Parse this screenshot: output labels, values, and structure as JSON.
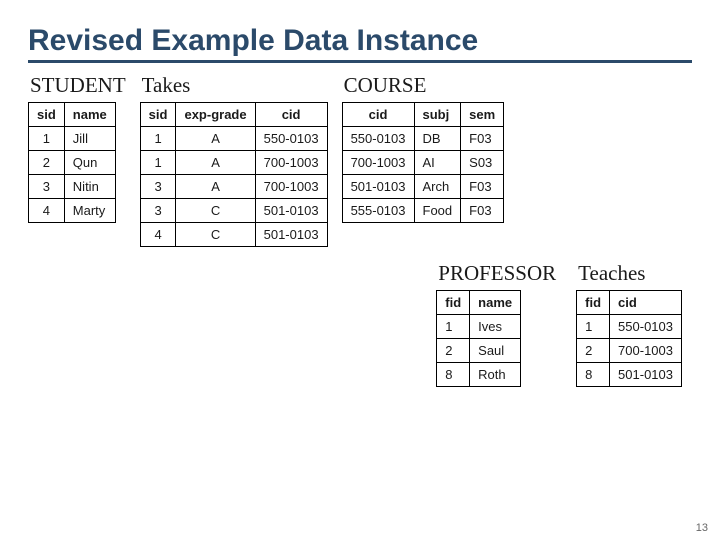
{
  "title": "Revised Example Data Instance",
  "page_number": "13",
  "colors": {
    "title": "#2b4a6a",
    "rule": "#2b4a6a",
    "border": "#000000",
    "background": "#ffffff"
  },
  "typography": {
    "title_fontsize": 30,
    "table_title_fontsize": 21,
    "cell_fontsize": 13
  },
  "tables": {
    "student": {
      "title": "STUDENT",
      "columns": [
        "sid",
        "name"
      ],
      "rows": [
        [
          "1",
          "Jill"
        ],
        [
          "2",
          "Qun"
        ],
        [
          "3",
          "Nitin"
        ],
        [
          "4",
          "Marty"
        ]
      ]
    },
    "takes": {
      "title": "Takes",
      "columns": [
        "sid",
        "exp-grade",
        "cid"
      ],
      "rows": [
        [
          "1",
          "A",
          "550-0103"
        ],
        [
          "1",
          "A",
          "700-1003"
        ],
        [
          "3",
          "A",
          "700-1003"
        ],
        [
          "3",
          "C",
          "501-0103"
        ],
        [
          "4",
          "C",
          "501-0103"
        ]
      ]
    },
    "course": {
      "title": "COURSE",
      "columns": [
        "cid",
        "subj",
        "sem"
      ],
      "rows": [
        [
          "550-0103",
          "DB",
          "F03"
        ],
        [
          "700-1003",
          "AI",
          "S03"
        ],
        [
          "501-0103",
          "Arch",
          "F03"
        ],
        [
          "555-0103",
          "Food",
          "F03"
        ]
      ]
    },
    "professor": {
      "title": "PROFESSOR",
      "columns": [
        "fid",
        "name"
      ],
      "rows": [
        [
          "1",
          "Ives"
        ],
        [
          "2",
          "Saul"
        ],
        [
          "8",
          "Roth"
        ]
      ]
    },
    "teaches": {
      "title": "Teaches",
      "columns": [
        "fid",
        "cid"
      ],
      "rows": [
        [
          "1",
          "550-0103"
        ],
        [
          "2",
          "700-1003"
        ],
        [
          "8",
          "501-0103"
        ]
      ]
    }
  }
}
